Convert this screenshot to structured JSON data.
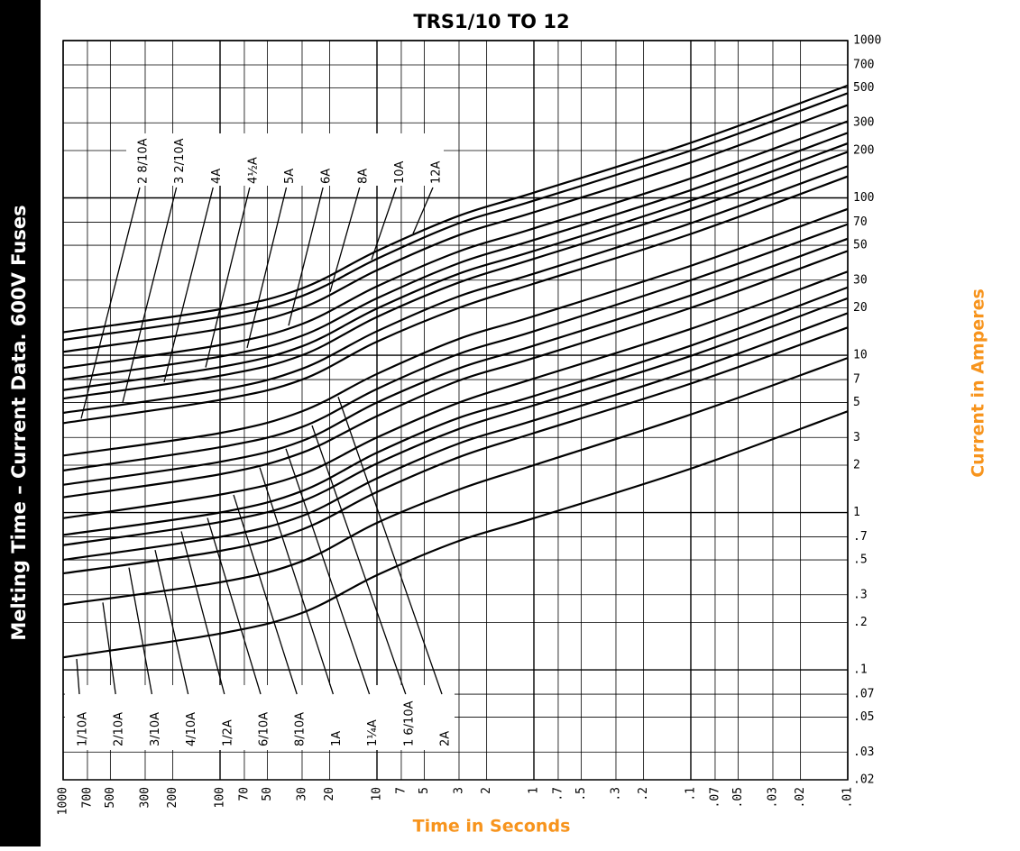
{
  "chart_data": {
    "type": "line",
    "title": "TRS1/10 TO 12",
    "side_label": "Melting Time – Current Data. 600V Fuses",
    "xlabel": "Time in Seconds",
    "ylabel": "Current in Amperes",
    "xscale": "log",
    "yscale": "log",
    "grid": true,
    "color": "#000000",
    "xlim": [
      1000,
      0.01
    ],
    "ylim": [
      0.02,
      1000
    ],
    "xticks": [
      1000,
      700,
      500,
      300,
      200,
      100,
      70,
      50,
      30,
      20,
      10,
      7,
      5,
      3,
      2,
      1,
      {
        "value": 0.7,
        "label": ".7"
      },
      {
        "value": 0.5,
        "label": ".5"
      },
      {
        "value": 0.3,
        "label": ".3"
      },
      {
        "value": 0.2,
        "label": ".2"
      },
      {
        "value": 0.1,
        "label": ".1"
      },
      {
        "value": 0.07,
        "label": ".07"
      },
      {
        "value": 0.05,
        "label": ".05"
      },
      {
        "value": 0.03,
        "label": ".03"
      },
      {
        "value": 0.02,
        "label": ".02"
      },
      {
        "value": 0.01,
        "label": ".01"
      }
    ],
    "yticks": [
      1000,
      700,
      500,
      300,
      200,
      100,
      70,
      50,
      30,
      20,
      10,
      7,
      5,
      3,
      2,
      1,
      {
        "value": 0.7,
        "label": ".7"
      },
      {
        "value": 0.5,
        "label": ".5"
      },
      {
        "value": 0.3,
        "label": ".3"
      },
      {
        "value": 0.2,
        "label": ".2"
      },
      {
        "value": 0.1,
        "label": ".1"
      },
      {
        "value": 0.07,
        "label": ".07"
      },
      {
        "value": 0.05,
        "label": ".05"
      },
      {
        "value": 0.03,
        "label": ".03"
      },
      {
        "value": 0.02,
        "label": ".02"
      }
    ],
    "x": [
      1000,
      100,
      30,
      10,
      3,
      1,
      0.1,
      0.01
    ],
    "series": [
      {
        "name": "1/10A",
        "values": [
          0.12,
          0.17,
          0.23,
          0.4,
          0.66,
          0.92,
          1.9,
          4.4
        ]
      },
      {
        "name": "2/10A",
        "values": [
          0.26,
          0.36,
          0.49,
          0.86,
          1.4,
          2,
          4.2,
          9.6
        ]
      },
      {
        "name": "3/10A",
        "values": [
          0.41,
          0.57,
          0.78,
          1.35,
          2.25,
          3.2,
          6.6,
          15
        ]
      },
      {
        "name": "4/10A",
        "values": [
          0.5,
          0.7,
          0.95,
          1.65,
          2.75,
          3.85,
          8,
          18.5
        ]
      },
      {
        "name": "1/2A",
        "values": [
          0.62,
          0.87,
          1.18,
          2.05,
          3.4,
          4.8,
          9.9,
          23
        ]
      },
      {
        "name": "6/10A",
        "values": [
          0.72,
          1,
          1.37,
          2.4,
          4,
          5.5,
          11.5,
          27
        ]
      },
      {
        "name": "8/10A",
        "values": [
          0.92,
          1.3,
          1.75,
          3,
          5,
          7.1,
          14.7,
          34
        ]
      },
      {
        "name": "1A",
        "values": [
          1.25,
          1.75,
          2.4,
          4.1,
          6.9,
          9.6,
          20,
          46
        ]
      },
      {
        "name": "1¼A",
        "values": [
          1.5,
          2.1,
          2.85,
          5,
          8.25,
          11.5,
          24,
          55
        ]
      },
      {
        "name": "1 6/10A",
        "values": [
          1.85,
          2.6,
          3.5,
          6.1,
          10.2,
          14.2,
          30,
          68
        ]
      },
      {
        "name": "2A",
        "values": [
          2.3,
          3.2,
          4.4,
          7.6,
          12.7,
          17.7,
          37,
          85
        ]
      },
      {
        "name": "2 8/10A",
        "values": [
          3.7,
          5.2,
          7,
          12.2,
          20,
          28.5,
          59,
          137
        ]
      },
      {
        "name": "3 2/10A",
        "values": [
          4.3,
          6,
          8.2,
          14.2,
          23.7,
          33,
          69,
          159
        ]
      },
      {
        "name": "4A",
        "values": [
          5.3,
          7.4,
          10,
          17.5,
          29,
          41,
          85,
          196
        ]
      },
      {
        "name": "4½A",
        "values": [
          6,
          8.4,
          11.4,
          19.8,
          33,
          46,
          96,
          222
        ]
      },
      {
        "name": "5A",
        "values": [
          7,
          9.8,
          13.3,
          23,
          38.5,
          54,
          112,
          259
        ]
      },
      {
        "name": "6A",
        "values": [
          8.3,
          11.6,
          15.8,
          27.4,
          45.7,
          64,
          133,
          307
        ]
      },
      {
        "name": "8A",
        "values": [
          10.5,
          14.7,
          20,
          34.7,
          58,
          81,
          168,
          389
        ]
      },
      {
        "name": "10A",
        "values": [
          12.5,
          17.5,
          23.8,
          41,
          69,
          96,
          200,
          463
        ]
      },
      {
        "name": "12A",
        "values": [
          14,
          19.6,
          26.6,
          46,
          77,
          108,
          224,
          518
        ]
      }
    ]
  }
}
